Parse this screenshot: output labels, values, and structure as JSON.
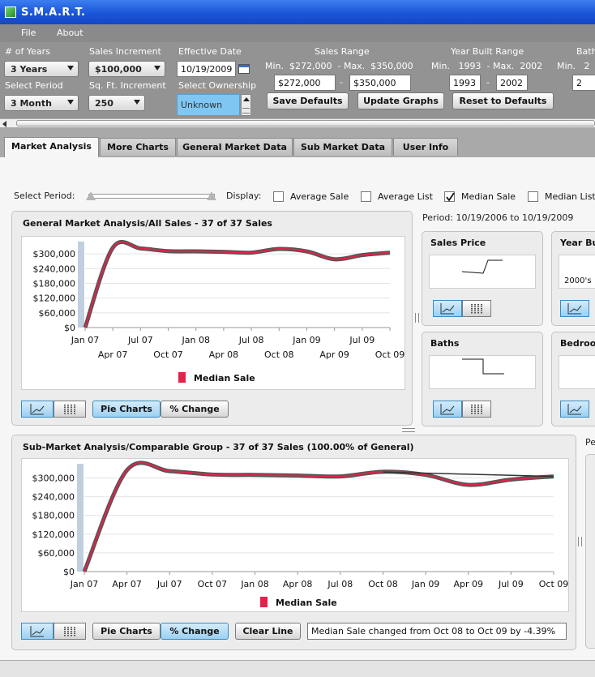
{
  "window": {
    "title": "S.M.A.R.T."
  },
  "menu": {
    "file": "File",
    "about": "About"
  },
  "controls": {
    "years_label": "# of Years",
    "years_value": "3 Years",
    "period_label": "Select Period",
    "period_value": "3 Month",
    "sales_inc_label": "Sales Increment",
    "sales_inc_value": "$100,000",
    "sqft_inc_label": "Sq. Ft. Increment",
    "sqft_inc_value": "250",
    "eff_date_label": "Effective Date",
    "eff_date_value": "10/19/2009",
    "ownership_label": "Select Ownership",
    "ownership_value": "Unknown",
    "sales_range_label": "Sales Range",
    "sales_range_text": "Min.  $272,000  - Max.  $350,000",
    "sales_min_value": "$272,000",
    "sales_max_value": "$350,000",
    "year_range_label": "Year Built Range",
    "year_range_text": "Min.   1993  - Max.  2002",
    "year_min_value": "1993",
    "year_max_value": "2002",
    "bath_label": "Bath",
    "bath_text": "Min.   2",
    "bath_value": "2",
    "save_defaults": "Save Defaults",
    "update_graphs": "Update Graphs",
    "reset_defaults": "Reset to Defaults",
    "dash": "-"
  },
  "tabs": [
    "Market Analysis",
    "More Charts",
    "General Market Data",
    "Sub Market Data",
    "User Info"
  ],
  "display": {
    "select_period": "Select Period:",
    "display_label": "Display:",
    "average_sale": "Average Sale",
    "average_list": "Average List",
    "median_sale": "Median Sale",
    "median_list": "Median List",
    "period_text": "Period: 10/19/2006 to 10/19/2009"
  },
  "general_panel": {
    "title": "General Market Analysis/All Sales - 37 of 37 Sales",
    "legend": "Median Sale",
    "pie_charts": "Pie Charts",
    "pct_change": "% Change"
  },
  "mini_panels": {
    "sales_price": "Sales Price",
    "year_built": "Year Bu",
    "year_built_value": "2000's",
    "baths": "Baths",
    "bedrooms": "Bedroo"
  },
  "sub_panel": {
    "title": "Sub-Market Analysis/Comparable Group - 37 of 37 Sales (100.00% of General)",
    "legend": "Median Sale",
    "pie_charts": "Pie Charts",
    "pct_change": "% Change",
    "clear_line": "Clear Line",
    "change_text": "Median Sale changed from Oct 08 to Oct 09 by -4.39%",
    "side_label": "Pe"
  },
  "colors": {
    "series": "#e0234a",
    "trend": "#333333",
    "selected_button": "#9bd0f2"
  },
  "chart_data": [
    {
      "type": "line",
      "title": "General Market Analysis/All Sales - 37 of 37 Sales",
      "x": [
        "Jan 07",
        "Apr 07",
        "Jul 07",
        "Oct 07",
        "Jan 08",
        "Apr 08",
        "Jul 08",
        "Oct 08",
        "Jan 09",
        "Apr 09",
        "Jul 09",
        "Oct 09"
      ],
      "series": [
        {
          "name": "Median Sale",
          "values": [
            0,
            325000,
            322000,
            311000,
            310000,
            308000,
            305000,
            320000,
            310000,
            278000,
            295000,
            305000
          ]
        }
      ],
      "ylim": [
        0,
        330000
      ],
      "yticks": [
        "$0",
        "$60,000",
        "$120,000",
        "$180,000",
        "$240,000",
        "$300,000"
      ],
      "ytick_values": [
        0,
        60000,
        120000,
        180000,
        240000,
        300000
      ],
      "grid": true,
      "legend": "bottom"
    },
    {
      "type": "line",
      "title": "Sub-Market Analysis/Comparable Group - 37 of 37 Sales (100.00% of General)",
      "x": [
        "Jan 07",
        "Apr 07",
        "Jul 07",
        "Oct 07",
        "Jan 08",
        "Apr 08",
        "Jul 08",
        "Oct 08",
        "Jan 09",
        "Apr 09",
        "Jul 09",
        "Oct 09"
      ],
      "series": [
        {
          "name": "Median Sale",
          "values": [
            0,
            325000,
            322000,
            311000,
            310000,
            308000,
            305000,
            320000,
            310000,
            278000,
            295000,
            305000
          ]
        }
      ],
      "trend_line": {
        "from": [
          "Oct 08",
          319000
        ],
        "to": [
          "Oct 09",
          305000
        ]
      },
      "ylim": [
        0,
        330000
      ],
      "yticks": [
        "$0",
        "$60,000",
        "$120,000",
        "$180,000",
        "$240,000",
        "$300,000"
      ],
      "ytick_values": [
        0,
        60000,
        120000,
        180000,
        240000,
        300000
      ],
      "grid": true,
      "legend": "bottom"
    }
  ]
}
